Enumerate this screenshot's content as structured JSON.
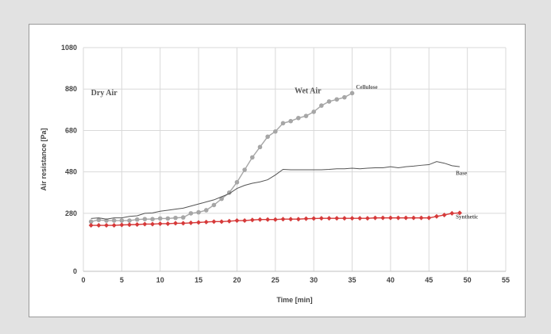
{
  "chart_data": {
    "type": "line",
    "xlabel": "Time [min]",
    "ylabel": "Air resistance [Pa]",
    "xlim": [
      0,
      55
    ],
    "ylim": [
      0,
      1080
    ],
    "x_ticks": [
      "0",
      "5",
      "10",
      "15",
      "20",
      "25",
      "30",
      "35",
      "40",
      "45",
      "50",
      "55"
    ],
    "y_ticks": [
      "0",
      "280",
      "480",
      "680",
      "880",
      "1080"
    ],
    "grid": true,
    "annotations": [
      {
        "text": "Dry Air",
        "x": 1,
        "y": 850,
        "size": 10
      },
      {
        "text": "Wet Air",
        "x": 27.5,
        "y": 860,
        "size": 10
      }
    ],
    "series": [
      {
        "name": "Cellulose",
        "color": "#a6a6a6",
        "marker": "circle",
        "label_x": 35.5,
        "label_y": 880,
        "x": [
          1,
          2,
          3,
          4,
          5,
          6,
          7,
          8,
          9,
          10,
          11,
          12,
          13,
          14,
          15,
          16,
          17,
          18,
          19,
          20,
          21,
          22,
          23,
          24,
          25,
          26,
          27,
          28,
          29,
          30,
          31,
          32,
          33,
          34,
          35
        ],
        "y": [
          240,
          248,
          245,
          245,
          245,
          245,
          250,
          252,
          252,
          255,
          255,
          258,
          260,
          280,
          285,
          295,
          320,
          350,
          380,
          430,
          490,
          550,
          600,
          650,
          675,
          715,
          725,
          740,
          750,
          770,
          800,
          820,
          830,
          840,
          860
        ]
      },
      {
        "name": "Base",
        "color": "#555555",
        "marker": "none",
        "label_x": 48.5,
        "label_y": 465,
        "x": [
          1,
          2,
          3,
          4,
          5,
          6,
          7,
          8,
          9,
          10,
          11,
          12,
          13,
          14,
          15,
          16,
          17,
          18,
          19,
          20,
          21,
          22,
          23,
          24,
          25,
          26,
          27,
          28,
          29,
          30,
          31,
          32,
          33,
          34,
          35,
          36,
          37,
          38,
          39,
          40,
          41,
          42,
          43,
          44,
          45,
          46,
          47,
          48,
          49
        ],
        "y": [
          255,
          258,
          252,
          258,
          258,
          265,
          268,
          280,
          282,
          290,
          295,
          300,
          305,
          315,
          325,
          335,
          345,
          360,
          375,
          400,
          415,
          425,
          432,
          442,
          465,
          492,
          490,
          490,
          490,
          490,
          490,
          492,
          495,
          495,
          498,
          495,
          498,
          500,
          500,
          505,
          500,
          505,
          508,
          512,
          515,
          530,
          522,
          510,
          505
        ]
      },
      {
        "name": "Synthetic",
        "color": "#d63a3a",
        "marker": "diamond",
        "label_x": 48.5,
        "label_y": 255,
        "x": [
          1,
          2,
          3,
          4,
          5,
          6,
          7,
          8,
          9,
          10,
          11,
          12,
          13,
          14,
          15,
          16,
          17,
          18,
          19,
          20,
          21,
          22,
          23,
          24,
          25,
          26,
          27,
          28,
          29,
          30,
          31,
          32,
          33,
          34,
          35,
          36,
          37,
          38,
          39,
          40,
          41,
          42,
          43,
          44,
          45,
          46,
          47,
          48,
          49
        ],
        "y": [
          222,
          222,
          222,
          222,
          224,
          225,
          226,
          228,
          228,
          230,
          230,
          232,
          232,
          234,
          236,
          238,
          240,
          240,
          242,
          245,
          245,
          248,
          250,
          250,
          250,
          252,
          252,
          252,
          254,
          255,
          256,
          256,
          256,
          256,
          256,
          256,
          256,
          258,
          258,
          258,
          258,
          258,
          258,
          258,
          258,
          265,
          272,
          280,
          282
        ]
      }
    ]
  }
}
